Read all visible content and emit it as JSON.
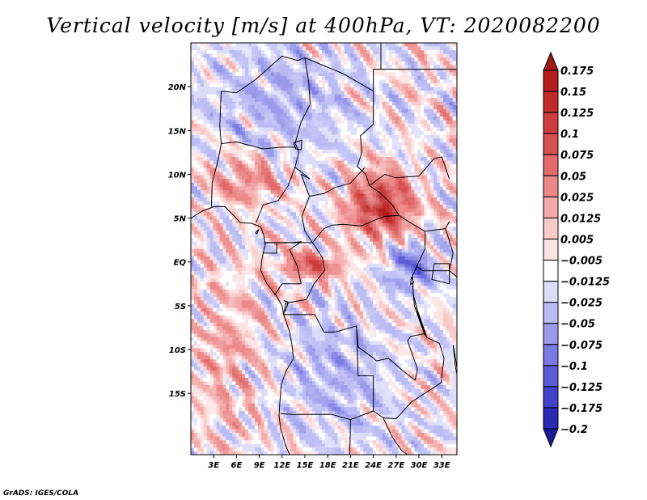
{
  "chart_data": {
    "type": "heatmap",
    "title": "Vertical velocity [m/s] at 400hPa, VT: 2020082200",
    "xlabel": "",
    "ylabel": "",
    "xlim": [
      0,
      35
    ],
    "ylim": [
      -22,
      25
    ],
    "x_ticks": [
      {
        "value": 3,
        "label": "3E"
      },
      {
        "value": 6,
        "label": "6E"
      },
      {
        "value": 9,
        "label": "9E"
      },
      {
        "value": 12,
        "label": "12E"
      },
      {
        "value": 15,
        "label": "15E"
      },
      {
        "value": 18,
        "label": "18E"
      },
      {
        "value": 21,
        "label": "21E"
      },
      {
        "value": 24,
        "label": "24E"
      },
      {
        "value": 27,
        "label": "27E"
      },
      {
        "value": 30,
        "label": "30E"
      },
      {
        "value": 33,
        "label": "33E"
      }
    ],
    "y_ticks": [
      {
        "value": 20,
        "label": "20N"
      },
      {
        "value": 15,
        "label": "15N"
      },
      {
        "value": 10,
        "label": "10N"
      },
      {
        "value": 5,
        "label": "5N"
      },
      {
        "value": 0,
        "label": "EQ"
      },
      {
        "value": -5,
        "label": "5S"
      },
      {
        "value": -10,
        "label": "10S"
      },
      {
        "value": -15,
        "label": "15S"
      }
    ],
    "colorbar": {
      "levels": [
        {
          "label": "0.175",
          "color": "#b41e1e"
        },
        {
          "label": "0.15",
          "color": "#c02a2a"
        },
        {
          "label": "0.125",
          "color": "#cc3c3c"
        },
        {
          "label": "0.1",
          "color": "#d85252"
        },
        {
          "label": "0.075",
          "color": "#e26a6a"
        },
        {
          "label": "0.05",
          "color": "#ec8888"
        },
        {
          "label": "0.025",
          "color": "#f4a8a8"
        },
        {
          "label": "0.0125",
          "color": "#f9c8c8"
        },
        {
          "label": "0.005",
          "color": "#fce4e4"
        },
        {
          "label": "−0.005",
          "color": "#ffffff"
        },
        {
          "label": "−0.0125",
          "color": "#dcdcfa"
        },
        {
          "label": "−0.025",
          "color": "#babaf4"
        },
        {
          "label": "−0.05",
          "color": "#9a9aec"
        },
        {
          "label": "−0.075",
          "color": "#7a7ae2"
        },
        {
          "label": "−0.1",
          "color": "#5c5cd6"
        },
        {
          "label": "−0.125",
          "color": "#4242c8"
        },
        {
          "label": "−0.175",
          "color": "#2a2ab4"
        },
        {
          "label": "−0.2",
          "color": "#1a1aa2"
        }
      ],
      "over_color": "#a01818",
      "under_color": "#1a1a9a"
    },
    "field_regions": [
      {
        "name": "sahel-west-positive",
        "lon": [
          3,
          12
        ],
        "lat": [
          7,
          12
        ],
        "sign": "positive",
        "strength": 0.06
      },
      {
        "name": "darfur-ethiopia-strong-positive",
        "lon": [
          21,
          29
        ],
        "lat": [
          3,
          10
        ],
        "sign": "positive",
        "strength": 0.14
      },
      {
        "name": "congo-basin-positive",
        "lon": [
          12,
          20
        ],
        "lat": [
          -2,
          1
        ],
        "sign": "positive",
        "strength": 0.09
      },
      {
        "name": "southeast-atlantic-positive",
        "lon": [
          0,
          10
        ],
        "lat": [
          -20,
          -2
        ],
        "sign": "positive",
        "strength": 0.03
      },
      {
        "name": "sahara-negative",
        "lon": [
          3,
          21
        ],
        "lat": [
          12,
          25
        ],
        "sign": "negative",
        "strength": -0.04
      },
      {
        "name": "east-africa-negative",
        "lon": [
          26,
          32
        ],
        "lat": [
          -3,
          2
        ],
        "sign": "negative",
        "strength": -0.09
      },
      {
        "name": "southern-interior-negative",
        "lon": [
          12,
          26
        ],
        "lat": [
          -20,
          -6
        ],
        "sign": "negative",
        "strength": -0.04
      }
    ],
    "map": "Central Africa coastline and country borders, lon 0-35E, lat 22S-25N"
  },
  "credit": "GrADS: IGES/COLA"
}
